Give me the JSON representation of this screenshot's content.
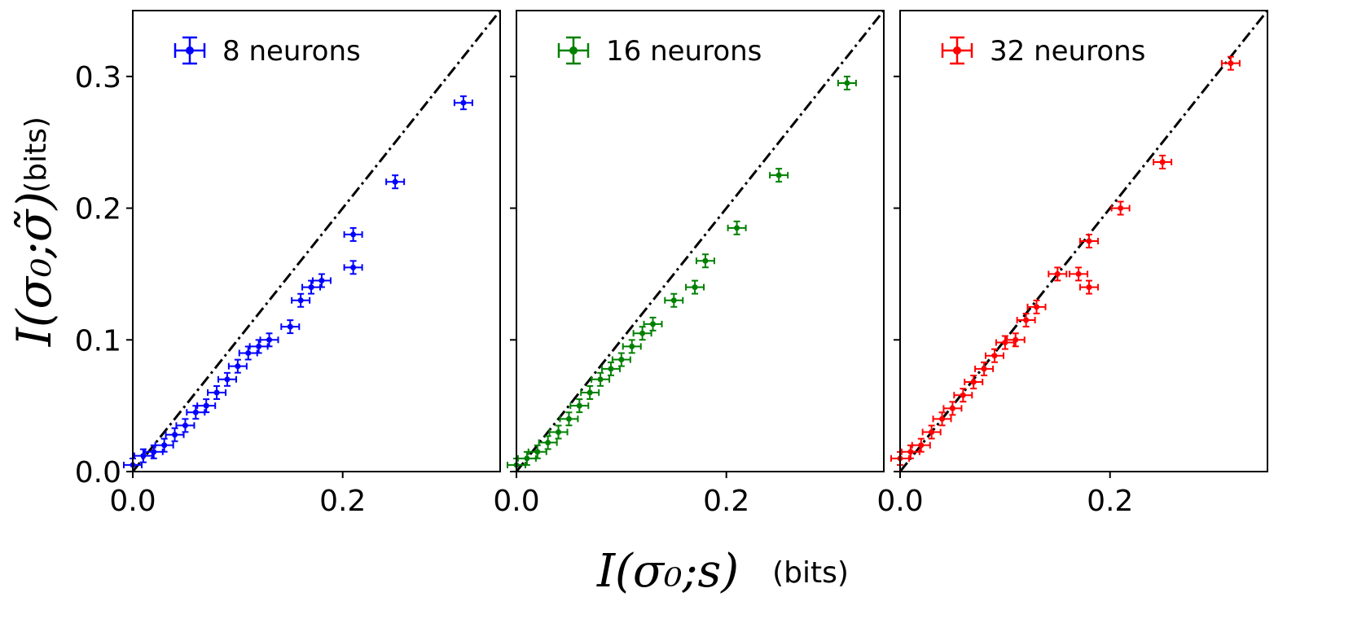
{
  "chart_data": [
    {
      "type": "scatter",
      "legend": "8 neurons",
      "color": "#0000ff",
      "xlim": [
        0,
        0.35
      ],
      "ylim": [
        0,
        0.35
      ],
      "xticks": [
        "0.0",
        "0.2"
      ],
      "yticks": [
        "0.0",
        "0.1",
        "0.2",
        "0.3"
      ],
      "reference_line": "y = x (dash-dot, black)",
      "points": [
        [
          0.0,
          0.005
        ],
        [
          0.01,
          0.012
        ],
        [
          0.02,
          0.015
        ],
        [
          0.03,
          0.02
        ],
        [
          0.04,
          0.028
        ],
        [
          0.05,
          0.035
        ],
        [
          0.06,
          0.045
        ],
        [
          0.07,
          0.05
        ],
        [
          0.08,
          0.06
        ],
        [
          0.09,
          0.07
        ],
        [
          0.1,
          0.08
        ],
        [
          0.11,
          0.09
        ],
        [
          0.12,
          0.095
        ],
        [
          0.13,
          0.1
        ],
        [
          0.15,
          0.11
        ],
        [
          0.16,
          0.13
        ],
        [
          0.17,
          0.14
        ],
        [
          0.18,
          0.145
        ],
        [
          0.21,
          0.155
        ],
        [
          0.21,
          0.18
        ],
        [
          0.25,
          0.22
        ],
        [
          0.315,
          0.28
        ]
      ]
    },
    {
      "type": "scatter",
      "legend": "16 neurons",
      "color": "#008000",
      "xlim": [
        0,
        0.35
      ],
      "ylim": [
        0,
        0.35
      ],
      "xticks": [
        "0.0",
        "0.2"
      ],
      "reference_line": "y = x (dash-dot, black)",
      "points": [
        [
          0.0,
          0.005
        ],
        [
          0.01,
          0.01
        ],
        [
          0.02,
          0.015
        ],
        [
          0.03,
          0.022
        ],
        [
          0.04,
          0.03
        ],
        [
          0.05,
          0.04
        ],
        [
          0.06,
          0.05
        ],
        [
          0.07,
          0.06
        ],
        [
          0.08,
          0.07
        ],
        [
          0.09,
          0.078
        ],
        [
          0.1,
          0.085
        ],
        [
          0.11,
          0.095
        ],
        [
          0.12,
          0.105
        ],
        [
          0.13,
          0.112
        ],
        [
          0.15,
          0.13
        ],
        [
          0.17,
          0.14
        ],
        [
          0.18,
          0.16
        ],
        [
          0.21,
          0.185
        ],
        [
          0.25,
          0.225
        ],
        [
          0.315,
          0.295
        ]
      ]
    },
    {
      "type": "scatter",
      "legend": "32 neurons",
      "color": "#ff0000",
      "xlim": [
        0,
        0.35
      ],
      "ylim": [
        0,
        0.35
      ],
      "xticks": [
        "0.0",
        "0.2"
      ],
      "reference_line": "y = x (dash-dot, black)",
      "points": [
        [
          0.0,
          0.01
        ],
        [
          0.01,
          0.015
        ],
        [
          0.02,
          0.02
        ],
        [
          0.03,
          0.03
        ],
        [
          0.04,
          0.04
        ],
        [
          0.05,
          0.048
        ],
        [
          0.06,
          0.058
        ],
        [
          0.07,
          0.068
        ],
        [
          0.08,
          0.078
        ],
        [
          0.09,
          0.088
        ],
        [
          0.1,
          0.098
        ],
        [
          0.11,
          0.1
        ],
        [
          0.12,
          0.115
        ],
        [
          0.13,
          0.125
        ],
        [
          0.15,
          0.15
        ],
        [
          0.17,
          0.15
        ],
        [
          0.18,
          0.14
        ],
        [
          0.18,
          0.175
        ],
        [
          0.21,
          0.2
        ],
        [
          0.25,
          0.235
        ],
        [
          0.315,
          0.31
        ]
      ]
    }
  ],
  "axes": {
    "ylabel_math": "I(σ₀;σ̃)",
    "ylabel_unit": "(bits)",
    "xlabel_math": "I(σ₀;s)",
    "xlabel_unit": "(bits)"
  }
}
